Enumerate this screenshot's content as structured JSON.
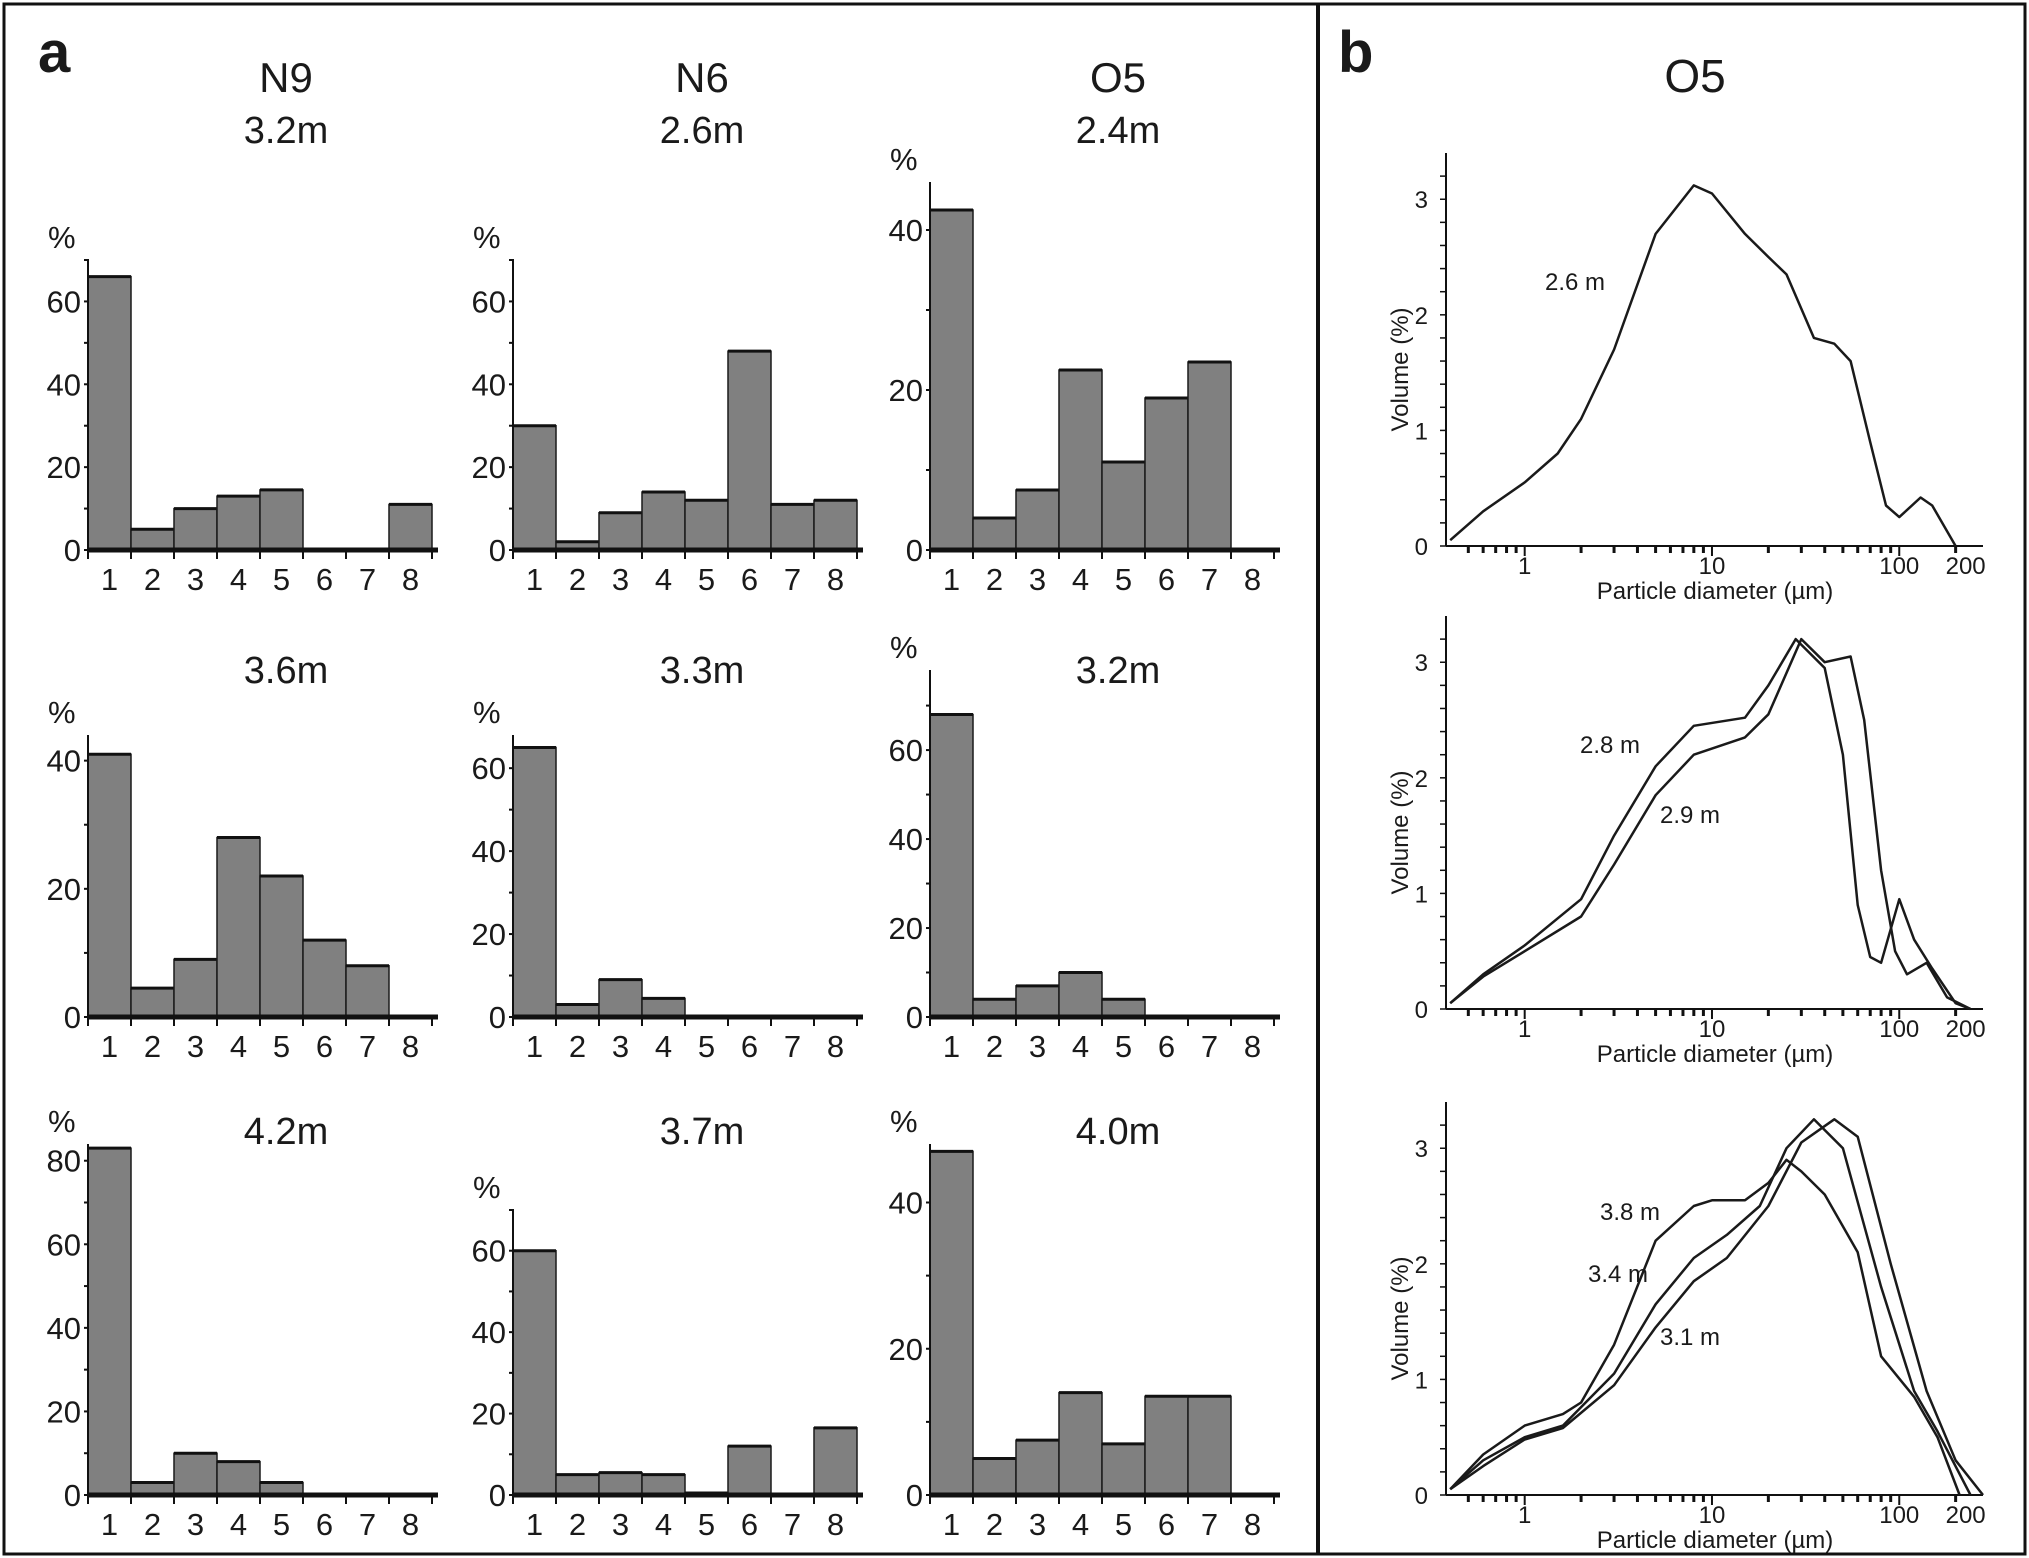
{
  "chart_data": [
    {
      "type": "bar",
      "panel_label": "a",
      "column_titles": [
        "N9",
        "N6",
        "O5"
      ],
      "categories": [
        "1",
        "2",
        "3",
        "4",
        "5",
        "6",
        "7",
        "8"
      ],
      "ylabel": "%",
      "colors": {
        "bar": "#808080",
        "edge": "#1a1a1a"
      },
      "panels": [
        {
          "column": "N9",
          "depth": "3.2m",
          "ylim": [
            0,
            70
          ],
          "yticks": [
            0,
            20,
            40,
            60
          ],
          "values": [
            66,
            5,
            10,
            13,
            14.5,
            0,
            0,
            11
          ]
        },
        {
          "column": "N6",
          "depth": "2.6m",
          "ylim": [
            0,
            70
          ],
          "yticks": [
            0,
            20,
            40,
            60
          ],
          "values": [
            30,
            2,
            9,
            14,
            12,
            48,
            11,
            12
          ]
        },
        {
          "column": "O5",
          "depth": "2.4m",
          "ylim": [
            0,
            46
          ],
          "yticks": [
            0,
            20,
            40
          ],
          "values": [
            42.5,
            4,
            7.5,
            22.5,
            11,
            19,
            23.5,
            0
          ]
        },
        {
          "column": "N9",
          "depth": "3.6m",
          "ylim": [
            0,
            44
          ],
          "yticks": [
            0,
            20,
            40
          ],
          "values": [
            41,
            4.5,
            9,
            28,
            22,
            12,
            8,
            0
          ]
        },
        {
          "column": "N6",
          "depth": "3.3m",
          "ylim": [
            0,
            68
          ],
          "yticks": [
            0,
            20,
            40,
            60
          ],
          "values": [
            65,
            3,
            9,
            4.5,
            0,
            0,
            0,
            0
          ]
        },
        {
          "column": "O5",
          "depth": "3.2m",
          "ylim": [
            0,
            78
          ],
          "yticks": [
            0,
            20,
            40,
            60
          ],
          "values": [
            68,
            4,
            7,
            10,
            4,
            0,
            0,
            0
          ]
        },
        {
          "column": "N9",
          "depth": "4.2m",
          "ylim": [
            0,
            84
          ],
          "yticks": [
            0,
            20,
            40,
            60,
            80
          ],
          "values": [
            83,
            3,
            10,
            8,
            3,
            0,
            0,
            0
          ]
        },
        {
          "column": "N6",
          "depth": "3.7m",
          "ylim": [
            0,
            70
          ],
          "yticks": [
            0,
            20,
            40,
            60
          ],
          "values": [
            60,
            5,
            5.5,
            5,
            0.5,
            12,
            0,
            16.5
          ]
        },
        {
          "column": "O5",
          "depth": "4.0m",
          "ylim": [
            0,
            48
          ],
          "yticks": [
            0,
            20,
            40
          ],
          "values": [
            47,
            5,
            7.5,
            14,
            7,
            13.5,
            13.5,
            0
          ]
        }
      ]
    },
    {
      "type": "line",
      "panel_label": "b",
      "title": "O5",
      "xlabel": "Particle diameter (µm)",
      "ylabel": "Volume (%)",
      "xscale": "log",
      "xlim": [
        0.38,
        280
      ],
      "ylim": [
        0,
        3.4
      ],
      "xticks": [
        1,
        10,
        100,
        200
      ],
      "xtick_labels": [
        "1",
        "10",
        "100",
        "200"
      ],
      "yticks": [
        0,
        1,
        2,
        3
      ],
      "subplots": [
        {
          "series": [
            {
              "name": "2.6 m",
              "points": [
                [
                  0.4,
                  0.05
                ],
                [
                  0.6,
                  0.3
                ],
                [
                  1,
                  0.55
                ],
                [
                  1.5,
                  0.8
                ],
                [
                  2,
                  1.1
                ],
                [
                  3,
                  1.7
                ],
                [
                  5,
                  2.7
                ],
                [
                  8,
                  3.12
                ],
                [
                  10,
                  3.05
                ],
                [
                  15,
                  2.7
                ],
                [
                  20,
                  2.5
                ],
                [
                  25,
                  2.35
                ],
                [
                  35,
                  1.8
                ],
                [
                  45,
                  1.75
                ],
                [
                  55,
                  1.6
                ],
                [
                  70,
                  0.9
                ],
                [
                  85,
                  0.35
                ],
                [
                  100,
                  0.25
                ],
                [
                  130,
                  0.42
                ],
                [
                  150,
                  0.35
                ],
                [
                  200,
                  0
                ]
              ]
            }
          ]
        },
        {
          "series": [
            {
              "name": "2.8 m",
              "points": [
                [
                  0.4,
                  0.05
                ],
                [
                  0.6,
                  0.3
                ],
                [
                  1,
                  0.55
                ],
                [
                  2,
                  0.95
                ],
                [
                  3,
                  1.5
                ],
                [
                  5,
                  2.1
                ],
                [
                  8,
                  2.45
                ],
                [
                  15,
                  2.52
                ],
                [
                  20,
                  2.8
                ],
                [
                  28,
                  3.2
                ],
                [
                  40,
                  2.95
                ],
                [
                  50,
                  2.2
                ],
                [
                  60,
                  0.9
                ],
                [
                  70,
                  0.45
                ],
                [
                  80,
                  0.4
                ],
                [
                  100,
                  0.95
                ],
                [
                  120,
                  0.6
                ],
                [
                  150,
                  0.35
                ],
                [
                  200,
                  0.05
                ],
                [
                  240,
                  0
                ]
              ]
            },
            {
              "name": "2.9 m",
              "points": [
                [
                  0.4,
                  0.05
                ],
                [
                  0.6,
                  0.28
                ],
                [
                  1,
                  0.5
                ],
                [
                  2,
                  0.8
                ],
                [
                  3,
                  1.25
                ],
                [
                  5,
                  1.85
                ],
                [
                  8,
                  2.2
                ],
                [
                  15,
                  2.35
                ],
                [
                  20,
                  2.55
                ],
                [
                  30,
                  3.2
                ],
                [
                  40,
                  3.0
                ],
                [
                  55,
                  3.05
                ],
                [
                  65,
                  2.5
                ],
                [
                  80,
                  1.2
                ],
                [
                  95,
                  0.5
                ],
                [
                  110,
                  0.3
                ],
                [
                  140,
                  0.4
                ],
                [
                  180,
                  0.1
                ],
                [
                  240,
                  0
                ]
              ]
            }
          ]
        },
        {
          "series": [
            {
              "name": "3.8 m",
              "points": [
                [
                  0.4,
                  0.05
                ],
                [
                  0.6,
                  0.35
                ],
                [
                  1,
                  0.6
                ],
                [
                  1.6,
                  0.7
                ],
                [
                  2,
                  0.8
                ],
                [
                  3,
                  1.3
                ],
                [
                  5,
                  2.2
                ],
                [
                  8,
                  2.5
                ],
                [
                  10,
                  2.55
                ],
                [
                  15,
                  2.55
                ],
                [
                  20,
                  2.7
                ],
                [
                  25,
                  2.9
                ],
                [
                  30,
                  2.8
                ],
                [
                  40,
                  2.6
                ],
                [
                  60,
                  2.1
                ],
                [
                  80,
                  1.2
                ],
                [
                  120,
                  0.85
                ],
                [
                  160,
                  0.5
                ],
                [
                  210,
                  0
                ]
              ]
            },
            {
              "name": "3.4 m",
              "points": [
                [
                  0.4,
                  0.05
                ],
                [
                  0.6,
                  0.3
                ],
                [
                  1,
                  0.5
                ],
                [
                  1.6,
                  0.6
                ],
                [
                  3,
                  1.05
                ],
                [
                  5,
                  1.65
                ],
                [
                  8,
                  2.05
                ],
                [
                  12,
                  2.25
                ],
                [
                  18,
                  2.5
                ],
                [
                  25,
                  3.0
                ],
                [
                  35,
                  3.25
                ],
                [
                  50,
                  3.0
                ],
                [
                  80,
                  1.8
                ],
                [
                  120,
                  0.9
                ],
                [
                  160,
                  0.55
                ],
                [
                  240,
                  0
                ]
              ]
            },
            {
              "name": "3.1 m",
              "points": [
                [
                  0.4,
                  0.05
                ],
                [
                  0.6,
                  0.25
                ],
                [
                  1,
                  0.48
                ],
                [
                  1.6,
                  0.58
                ],
                [
                  3,
                  0.95
                ],
                [
                  5,
                  1.45
                ],
                [
                  8,
                  1.85
                ],
                [
                  12,
                  2.05
                ],
                [
                  20,
                  2.5
                ],
                [
                  30,
                  3.05
                ],
                [
                  45,
                  3.25
                ],
                [
                  60,
                  3.1
                ],
                [
                  90,
                  2.0
                ],
                [
                  140,
                  0.9
                ],
                [
                  200,
                  0.3
                ],
                [
                  280,
                  0
                ]
              ]
            }
          ]
        }
      ]
    }
  ]
}
